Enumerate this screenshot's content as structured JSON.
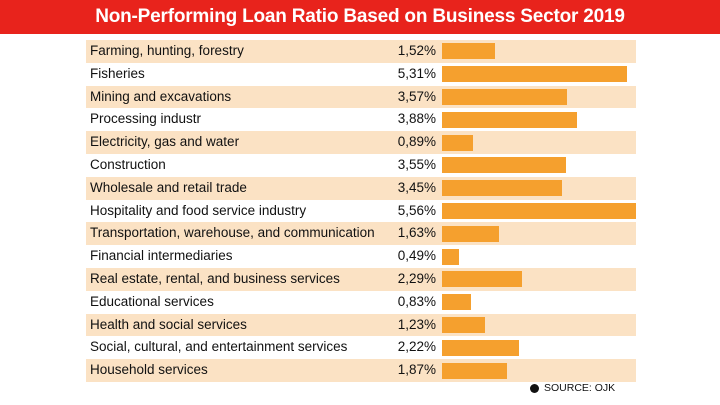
{
  "title": "Non-Performing Loan Ratio Based on Business Sector 2019",
  "source": "SOURCE: OJK",
  "colors": {
    "title_bg": "#e8231c",
    "bar": "#f5a02e",
    "row_shade": "#fbe2c4"
  },
  "chart_data": {
    "type": "bar",
    "orientation": "horizontal",
    "title": "Non-Performing Loan Ratio Based on Business Sector 2019",
    "unit": "%",
    "categories": [
      "Farming, hunting, forestry",
      "Fisheries",
      "Mining and excavations",
      "Processing industr",
      "Electricity, gas and water",
      "Construction",
      "Wholesale and retail trade",
      "Hospitality and food service industry",
      "Transportation, warehouse, and communication",
      "Financial intermediaries",
      "Real estate, rental, and business services",
      "Educational services",
      "Health and social services",
      "Social, cultural, and entertainment services",
      "Household services"
    ],
    "values": [
      1.52,
      5.31,
      3.57,
      3.88,
      0.89,
      3.55,
      3.45,
      5.56,
      1.63,
      0.49,
      2.29,
      0.83,
      1.23,
      2.22,
      1.87
    ],
    "value_labels": [
      "1,52%",
      "5,31%",
      "3,57%",
      "3,88%",
      "0,89%",
      "3,55%",
      "3,45%",
      "5,56%",
      "1,63%",
      "0,49%",
      "2,29%",
      "0,83%",
      "1,23%",
      "2,22%",
      "1,87%"
    ],
    "xlim": [
      0,
      5.56
    ],
    "grid": false,
    "legend": "none"
  }
}
